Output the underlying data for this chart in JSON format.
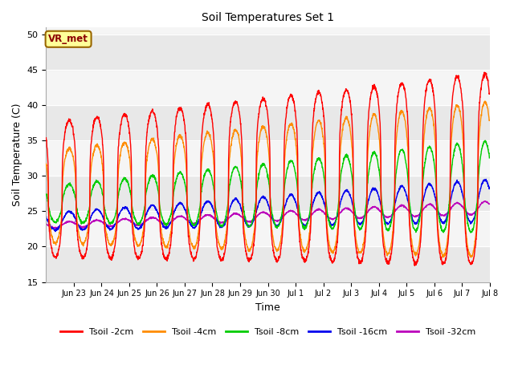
{
  "title": "Soil Temperatures Set 1",
  "xlabel": "Time",
  "ylabel": "Soil Temperature (C)",
  "ylim": [
    15,
    51
  ],
  "yticks": [
    15,
    20,
    25,
    30,
    35,
    40,
    45,
    50
  ],
  "annotation_text": "VR_met",
  "annotation_color": "#8B0000",
  "annotation_bg": "#FFFF99",
  "annotation_border": "#996600",
  "series_colors": {
    "Tsoil -2cm": "#FF0000",
    "Tsoil -4cm": "#FF8C00",
    "Tsoil -8cm": "#00CC00",
    "Tsoil -16cm": "#0000EE",
    "Tsoil -32cm": "#BB00BB"
  },
  "background_color": "#FFFFFF",
  "plot_bg_light": "#F5F5F5",
  "plot_bg_dark": "#E8E8E8",
  "grid_color": "#FFFFFF",
  "n_days": 16,
  "start_day": 22,
  "ppd": 144,
  "tick_positions": [
    1,
    2,
    3,
    4,
    5,
    6,
    7,
    8,
    9,
    10,
    11,
    12,
    13,
    14,
    15,
    16
  ],
  "tick_labels": [
    "Jun 23",
    "Jun 24",
    "Jun 25",
    "Jun 26",
    "Jun 27",
    "Jun 28",
    "Jun 29",
    "Jun 30",
    "Jul 1",
    "Jul 2",
    "Jul 3",
    "Jul 4",
    "Jul 5",
    "Jul 6",
    "Jul 7",
    "Jul 8"
  ]
}
